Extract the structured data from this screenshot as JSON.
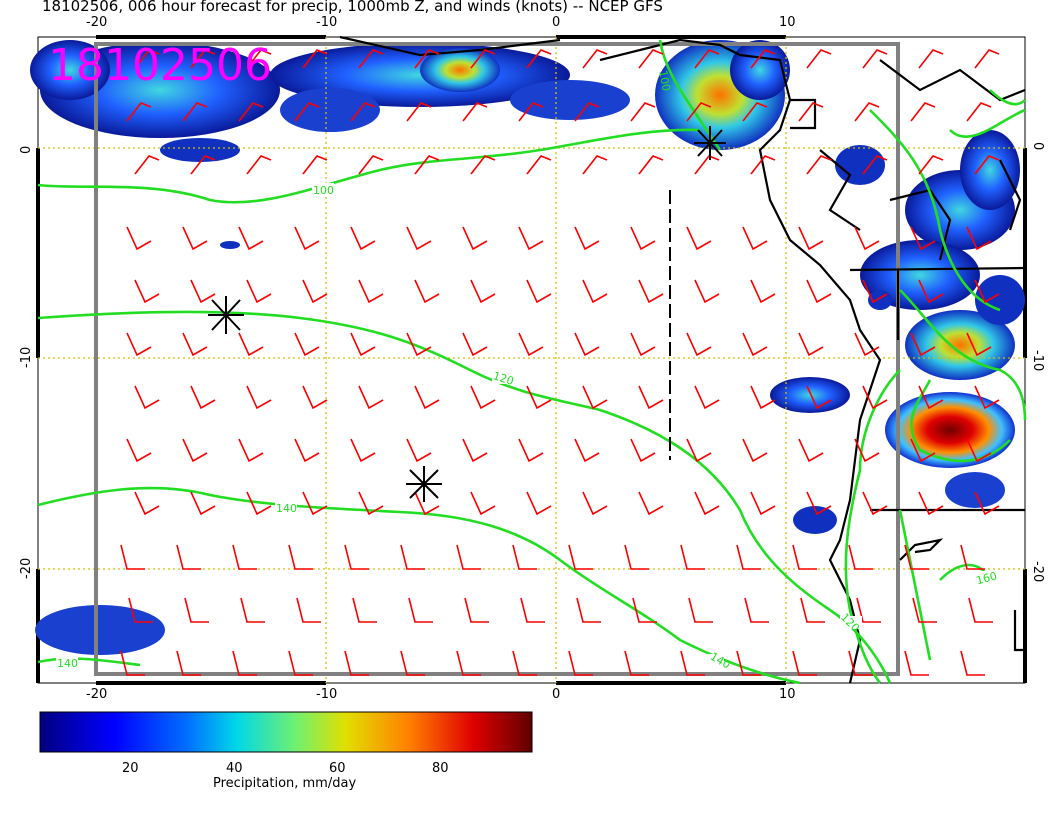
{
  "title": "18102506, 006 hour forecast for precip, 1000mb Z, and winds (knots) -- NCEP GFS",
  "stamp": "18102506",
  "colorbar": {
    "label": "Precipitation, mm/day",
    "ticks": [
      "20",
      "40",
      "60",
      "80"
    ],
    "colors": [
      "#00007f",
      "#0000ff",
      "#0080ff",
      "#00e0e0",
      "#80ff80",
      "#e0e000",
      "#ff8000",
      "#e00000",
      "#600000"
    ]
  },
  "axes": {
    "lon_ticks": [
      "-20",
      "-10",
      "0",
      "10"
    ],
    "lat_ticks": [
      "0",
      "-10",
      "-20"
    ]
  },
  "contour_labels": [
    "100",
    "120",
    "140",
    "140",
    "140",
    "120",
    "160",
    "100"
  ],
  "colors": {
    "wind_barbs": "#ff0000",
    "contours": "#22dd22",
    "stamp": "#ff00ff",
    "grid": "#d4c000",
    "frame": "#808080"
  },
  "markers": [
    "asterisk",
    "asterisk",
    "asterisk"
  ]
}
